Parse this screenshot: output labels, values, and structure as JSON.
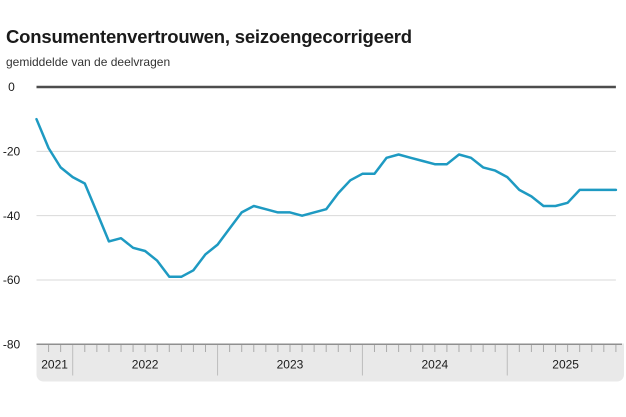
{
  "chart": {
    "title": "Consumentenvertrouwen, seizoengecorrigeerd",
    "subtitle": "gemiddelde van de deelvragen"
  },
  "chart_data": {
    "type": "line",
    "title": "Consumentenvertrouwen, seizoengecorrigeerd",
    "subtitle": "gemiddelde van de deelvragen",
    "series_name": "Consumentenvertrouwen (gemiddelde van de deelvragen)",
    "x": [
      "2021-10",
      "2021-11",
      "2021-12",
      "2022-01",
      "2022-02",
      "2022-03",
      "2022-04",
      "2022-05",
      "2022-06",
      "2022-07",
      "2022-08",
      "2022-09",
      "2022-10",
      "2022-11",
      "2022-12",
      "2023-01",
      "2023-02",
      "2023-03",
      "2023-04",
      "2023-05",
      "2023-06",
      "2023-07",
      "2023-08",
      "2023-09",
      "2023-10",
      "2023-11",
      "2023-12",
      "2024-01",
      "2024-02",
      "2024-03",
      "2024-04",
      "2024-05",
      "2024-06",
      "2024-07",
      "2024-08",
      "2024-09",
      "2024-10",
      "2024-11",
      "2024-12",
      "2025-01",
      "2025-02",
      "2025-03",
      "2025-04",
      "2025-05",
      "2025-06",
      "2025-07",
      "2025-08",
      "2025-09",
      "2025-10"
    ],
    "values": [
      -10,
      -19,
      -25,
      -28,
      -30,
      -39,
      -48,
      -47,
      -50,
      -51,
      -54,
      -59,
      -59,
      -57,
      -52,
      -49,
      -44,
      -39,
      -37,
      -38,
      -39,
      -39,
      -40,
      -39,
      -38,
      -33,
      -29,
      -27,
      -27,
      -22,
      -21,
      -22,
      -23,
      -24,
      -24,
      -21,
      -22,
      -25,
      -26,
      -28,
      -32,
      -34,
      -37,
      -37,
      -36,
      -32,
      -32,
      -32,
      -32
    ],
    "ylim": [
      -80,
      0
    ],
    "y_ticks": [
      0,
      -20,
      -40,
      -60,
      -80
    ],
    "y_tick_labels": [
      "0",
      "-20",
      "-40",
      "-60",
      "-80"
    ],
    "x_year_labels": [
      "2021",
      "2022",
      "2023",
      "2024",
      "2025"
    ],
    "grid": "horizontal",
    "legend": "none",
    "colors": {
      "line": "#1e9ac2",
      "grid": "#d9d9d9",
      "zero_line": "#4d4d4d",
      "axis_band": "#e9e9e9",
      "axis_band_border": "#8f8f8f",
      "month_tick": "#ababab",
      "year_separator": "#bdbdbd",
      "text": "#1a1a1a"
    }
  }
}
